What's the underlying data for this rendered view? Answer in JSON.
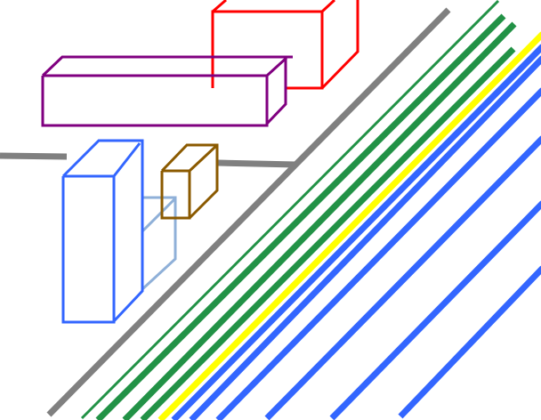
{
  "colors": {
    "road_edge": "#808080",
    "lane_green": "#229246",
    "lane_yellow": "#ffff00",
    "lane_blue": "#3366ff",
    "box_red": "#ff0000",
    "box_purple": "#800080",
    "box_blue": "#3366ff",
    "box_light_blue": "#8fb0d8",
    "box_brown": "#8b5a00"
  }
}
